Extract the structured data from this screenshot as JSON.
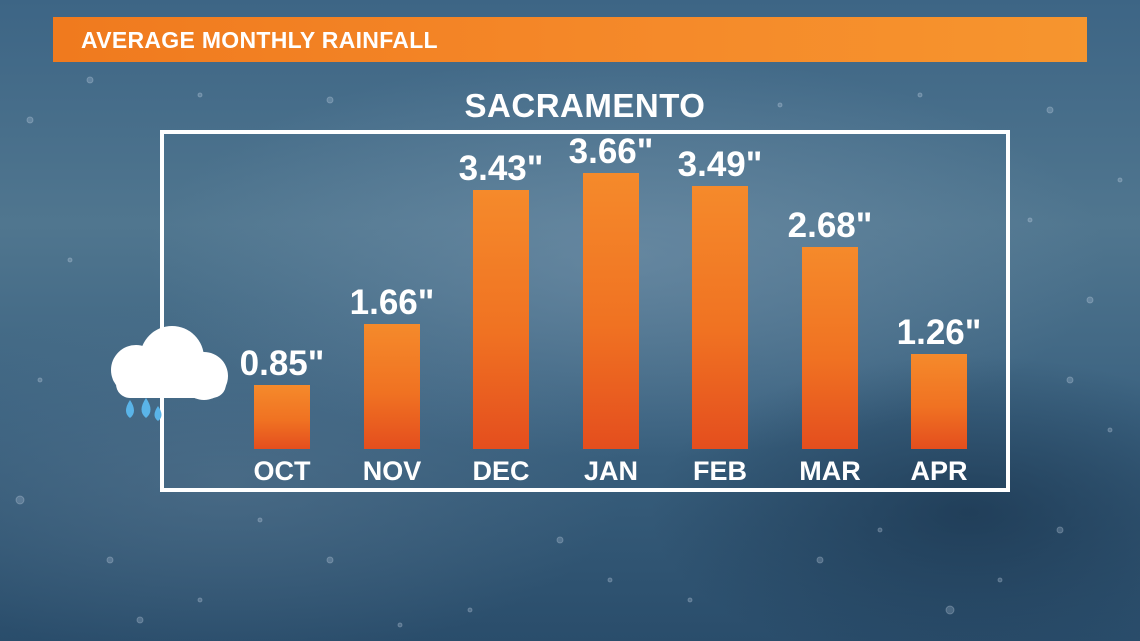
{
  "header": {
    "title": "AVERAGE MONTHLY RAINFALL"
  },
  "chart_data": {
    "type": "bar",
    "title": "SACRAMENTO",
    "categories": [
      "OCT",
      "NOV",
      "DEC",
      "JAN",
      "FEB",
      "MAR",
      "APR"
    ],
    "values": [
      0.85,
      1.66,
      3.43,
      3.66,
      3.49,
      2.68,
      1.26
    ],
    "value_labels": [
      "0.85\"",
      "1.66\"",
      "3.43\"",
      "3.66\"",
      "3.49\"",
      "2.68\"",
      "1.26\""
    ],
    "ylim": [
      0,
      3.66
    ],
    "xlabel": "",
    "ylabel": "",
    "grid": false,
    "legend": "none",
    "colors": {
      "bar": "#f07222",
      "bar_bottom": "#e44e1e",
      "title_bar": "#f58a2a",
      "text": "#ffffff"
    }
  },
  "icons": {
    "weather": "cloud-rain-icon"
  }
}
